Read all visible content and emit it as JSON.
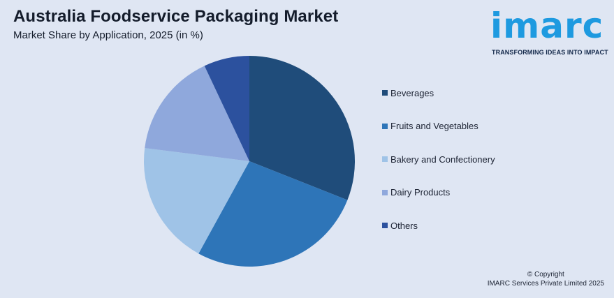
{
  "header": {
    "title": "Australia Foodservice Packaging Market",
    "subtitle": "Market Share by Application, 2025 (in %)"
  },
  "logo": {
    "wordmark": "imarc",
    "tagline": "TRANSFORMING IDEAS INTO IMPACT",
    "color": "#1e9ae0"
  },
  "chart_data": {
    "type": "pie",
    "categories": [
      "Beverages",
      "Fruits and Vegetables",
      "Bakery and Confectionery",
      "Dairy Products",
      "Others"
    ],
    "values": [
      31,
      27,
      19,
      16,
      7
    ],
    "colors": [
      "#1f4c7a",
      "#2e75b8",
      "#9fc3e7",
      "#8fa8dc",
      "#2c519e"
    ],
    "start_angle_deg": 0,
    "direction": "clockwise",
    "legend_position": "right"
  },
  "footer": {
    "copyright_line1": "© Copyright",
    "copyright_line2": "IMARC Services Private Limited 2025"
  }
}
